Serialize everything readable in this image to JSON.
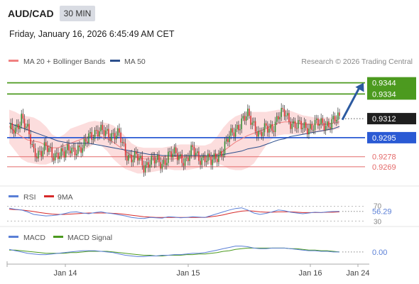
{
  "header": {
    "symbol": "AUD/CAD",
    "timeframe": "30 MIN",
    "datetime": "Friday, January 16, 2026 6:45:49 AM CET",
    "copyright": "Research © 2026 Trading Central"
  },
  "colors": {
    "resistance": "#4c9a1f",
    "support": "#2a5ad4",
    "minor_support": "#e46a6a",
    "candle_up": "#2e8b2e",
    "candle_down": "#d62a2a",
    "band_fill": "#fbd2d2",
    "ma20": "#f08080",
    "ma50": "#2c4f8c",
    "rsi": "#5a7fd6",
    "rsi_ma": "#d62a2a",
    "macd": "#5a7fd6",
    "macd_signal": "#4c9a1f",
    "arrow": "#2c5aa0",
    "current_price_bg": "#1f1f1f"
  },
  "chart_data": [
    {
      "type": "candlestick",
      "panel": "price",
      "legend": [
        {
          "name": "MA 20 + Bollinger Bands",
          "color": "#f08080"
        },
        {
          "name": "MA 50",
          "color": "#2c4f8c"
        }
      ],
      "ylim": [
        0.9255,
        0.9352
      ],
      "current_price": 0.9312,
      "levels": [
        {
          "label": "0.9344",
          "value": 0.9344,
          "kind": "resistance"
        },
        {
          "label": "0.9334",
          "value": 0.9334,
          "kind": "resistance"
        },
        {
          "label": "0.9295",
          "value": 0.9295,
          "kind": "support"
        },
        {
          "label": "0.9278",
          "value": 0.9278,
          "kind": "minor"
        },
        {
          "label": "0.9269",
          "value": 0.9269,
          "kind": "minor"
        }
      ],
      "projection": {
        "from": 0.9311,
        "to": 0.9344
      },
      "x_ticks": [
        "Jan 14",
        "Jan 15",
        "Jan 16",
        "Jan 24"
      ],
      "close_path": [
        0.93,
        0.9302,
        0.9315,
        0.93,
        0.9282,
        0.9283,
        0.9285,
        0.928,
        0.9282,
        0.9279,
        0.9286,
        0.9285,
        0.9283,
        0.9298,
        0.93,
        0.9299,
        0.93,
        0.9298,
        0.9296,
        0.9282,
        0.9278,
        0.9276,
        0.927,
        0.9275,
        0.9273,
        0.9272,
        0.928,
        0.9279,
        0.9278,
        0.9275,
        0.9283,
        0.9278,
        0.9277,
        0.9272,
        0.928,
        0.9284,
        0.9295,
        0.9304,
        0.9309,
        0.9314,
        0.9308,
        0.9297,
        0.9302,
        0.9305,
        0.9314,
        0.9316,
        0.931,
        0.9306,
        0.9303,
        0.9305,
        0.9307,
        0.9306,
        0.9308,
        0.931,
        0.9311
      ],
      "bb_upper": [
        0.932,
        0.9318,
        0.9315,
        0.9314,
        0.9313,
        0.931,
        0.9305,
        0.9298,
        0.9295,
        0.9298,
        0.9303,
        0.9305,
        0.9307,
        0.9309,
        0.931,
        0.9309,
        0.9308,
        0.9306,
        0.9302,
        0.9296,
        0.929,
        0.9287,
        0.9286,
        0.9286,
        0.9286,
        0.9286,
        0.9287,
        0.9288,
        0.9289,
        0.9289,
        0.9289,
        0.9288,
        0.9288,
        0.929,
        0.9296,
        0.9304,
        0.931,
        0.9314,
        0.9316,
        0.9318,
        0.9318,
        0.9318,
        0.9318,
        0.9319,
        0.932,
        0.932,
        0.9319,
        0.9317,
        0.9315,
        0.9314,
        0.9313,
        0.9313,
        0.9313,
        0.9313,
        0.9314
      ],
      "bb_lower": [
        0.929,
        0.9283,
        0.9276,
        0.9273,
        0.9272,
        0.9271,
        0.9271,
        0.9273,
        0.9276,
        0.9277,
        0.9278,
        0.928,
        0.9283,
        0.9286,
        0.929,
        0.9288,
        0.9283,
        0.9276,
        0.9271,
        0.9267,
        0.9265,
        0.9263,
        0.9263,
        0.9264,
        0.9265,
        0.9266,
        0.9267,
        0.9266,
        0.9266,
        0.9266,
        0.9267,
        0.9268,
        0.927,
        0.9272,
        0.9272,
        0.927,
        0.9267,
        0.9266,
        0.9266,
        0.9268,
        0.9272,
        0.928,
        0.9288,
        0.9294,
        0.9297,
        0.9298,
        0.9298,
        0.9298,
        0.9298,
        0.9299,
        0.93,
        0.93,
        0.9301,
        0.9302,
        0.9303
      ],
      "ma20": [
        0.9305,
        0.93,
        0.9296,
        0.9293,
        0.9292,
        0.9291,
        0.9288,
        0.9286,
        0.9286,
        0.9288,
        0.929,
        0.9292,
        0.9294,
        0.9296,
        0.9297,
        0.9296,
        0.9294,
        0.9291,
        0.9287,
        0.9283,
        0.9279,
        0.9277,
        0.9276,
        0.9276,
        0.9276,
        0.9276,
        0.9276,
        0.9276,
        0.9277,
        0.9278,
        0.9278,
        0.9278,
        0.9278,
        0.9278,
        0.928,
        0.9283,
        0.9287,
        0.9291,
        0.9294,
        0.9297,
        0.9299,
        0.9301,
        0.9303,
        0.9306,
        0.9308,
        0.9309,
        0.9309,
        0.9308,
        0.9307,
        0.9307,
        0.9307,
        0.9307,
        0.9307,
        0.9308,
        0.9309
      ],
      "ma50": [
        0.9308,
        0.9306,
        0.9304,
        0.9302,
        0.93,
        0.9298,
        0.9296,
        0.9294,
        0.9292,
        0.9291,
        0.929,
        0.929,
        0.929,
        0.929,
        0.9289,
        0.9288,
        0.9287,
        0.9286,
        0.9285,
        0.9284,
        0.9283,
        0.9282,
        0.9281,
        0.928,
        0.928,
        0.9279,
        0.9279,
        0.9279,
        0.9279,
        0.9279,
        0.9279,
        0.9279,
        0.9279,
        0.9279,
        0.9279,
        0.928,
        0.9281,
        0.9282,
        0.9283,
        0.9285,
        0.9286,
        0.9287,
        0.9289,
        0.9291,
        0.9293,
        0.9294,
        0.9296,
        0.9297,
        0.9298,
        0.9299,
        0.93,
        0.9301,
        0.9302,
        0.9303,
        0.9305
      ]
    },
    {
      "type": "line",
      "panel": "rsi",
      "legend": [
        {
          "name": "RSI",
          "color": "#5a7fd6"
        },
        {
          "name": "9MA",
          "color": "#d62a2a"
        }
      ],
      "y_ticks": [
        "70",
        "30"
      ],
      "ylim": [
        25,
        75
      ],
      "current_value_label": "56.29",
      "series": [
        {
          "name": "RSI",
          "values": [
            65,
            62,
            60,
            55,
            48,
            46,
            44,
            45,
            47,
            50,
            54,
            55,
            52,
            50,
            53,
            55,
            52,
            50,
            47,
            44,
            40,
            38,
            37,
            40,
            39,
            38,
            42,
            41,
            39,
            40,
            42,
            41,
            40,
            45,
            50,
            55,
            60,
            64,
            66,
            60,
            52,
            48,
            51,
            55,
            60,
            58,
            54,
            52,
            50,
            52,
            54,
            53,
            55,
            56,
            56.29
          ]
        },
        {
          "name": "9MA",
          "values": [
            62,
            61,
            60,
            58,
            56,
            53,
            51,
            49,
            48,
            48,
            49,
            50,
            51,
            52,
            52,
            52,
            52,
            51,
            50,
            48,
            46,
            44,
            42,
            41,
            40,
            40,
            40,
            40,
            40,
            40,
            40,
            40,
            40,
            42,
            44,
            47,
            51,
            54,
            57,
            58,
            57,
            55,
            54,
            54,
            55,
            55,
            55,
            54,
            53,
            53,
            53,
            53,
            54,
            54,
            55
          ]
        }
      ]
    },
    {
      "type": "line",
      "panel": "macd",
      "legend": [
        {
          "name": "MACD",
          "color": "#5a7fd6"
        },
        {
          "name": "MACD Signal",
          "color": "#4c9a1f"
        }
      ],
      "ylim": [
        -0.0012,
        0.0014
      ],
      "current_value_label": "0.00",
      "series": [
        {
          "name": "MACD",
          "values": [
            0.0004,
            0.0002,
            0.0,
            -0.0002,
            -0.0003,
            -0.0004,
            -0.0004,
            -0.0003,
            -0.0002,
            -0.0001,
            0.0,
            0.0001,
            0.0002,
            0.0002,
            0.0002,
            0.0001,
            0.0,
            -0.0001,
            -0.0003,
            -0.0005,
            -0.0006,
            -0.0007,
            -0.0007,
            -0.0006,
            -0.0006,
            -0.0005,
            -0.0005,
            -0.0004,
            -0.0004,
            -0.0003,
            -0.0002,
            -0.0002,
            -0.0001,
            0.0001,
            0.0003,
            0.0005,
            0.0007,
            0.0009,
            0.0009,
            0.0008,
            0.0006,
            0.0005,
            0.0005,
            0.0006,
            0.0006,
            0.0006,
            0.0005,
            0.0004,
            0.0003,
            0.0002,
            0.0002,
            0.0001,
            0.0001,
            0.0,
            0.0
          ]
        },
        {
          "name": "MACD Signal",
          "values": [
            0.0003,
            0.0003,
            0.0002,
            0.0001,
            0.0,
            -0.0001,
            -0.0002,
            -0.0002,
            -0.0002,
            -0.0002,
            -0.0001,
            -0.0001,
            0.0,
            0.0001,
            0.0001,
            0.0001,
            0.0001,
            0.0,
            -0.0001,
            -0.0002,
            -0.0003,
            -0.0004,
            -0.0005,
            -0.0005,
            -0.0006,
            -0.0006,
            -0.0005,
            -0.0005,
            -0.0005,
            -0.0004,
            -0.0004,
            -0.0003,
            -0.0003,
            -0.0002,
            -0.0001,
            0.0001,
            0.0002,
            0.0004,
            0.0005,
            0.0006,
            0.0006,
            0.0006,
            0.0006,
            0.0006,
            0.0006,
            0.0006,
            0.0005,
            0.0005,
            0.0004,
            0.0003,
            0.0003,
            0.0002,
            0.0002,
            0.0001,
            0.0
          ]
        }
      ]
    }
  ]
}
